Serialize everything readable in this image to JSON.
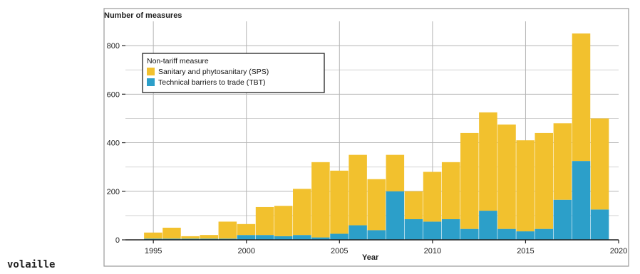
{
  "caption_word": "volaille",
  "chart_data": {
    "type": "bar",
    "stacked": true,
    "ylabel": "Number of measures",
    "xlabel": "Year",
    "ylim": [
      0,
      900
    ],
    "xlim": [
      1993.5,
      2020
    ],
    "yticks": [
      0,
      200,
      400,
      600,
      800
    ],
    "xticks": [
      1995,
      2000,
      2005,
      2010,
      2015,
      2020
    ],
    "grid": true,
    "legend": {
      "title": "Non-tariff measure",
      "placement": "top-left"
    },
    "colors": {
      "sps": "#f2c12e",
      "tbt": "#2c9fc9"
    },
    "x": [
      1995,
      1996,
      1997,
      1998,
      1999,
      2000,
      2001,
      2002,
      2003,
      2004,
      2005,
      2006,
      2007,
      2008,
      2009,
      2010,
      2011,
      2012,
      2013,
      2014,
      2015,
      2016,
      2017,
      2018,
      2019
    ],
    "series": [
      {
        "name": "Technical barriers to trade (TBT)",
        "key": "tbt",
        "values": [
          5,
          5,
          5,
          5,
          5,
          20,
          20,
          15,
          20,
          10,
          25,
          60,
          40,
          200,
          85,
          75,
          85,
          45,
          120,
          45,
          35,
          45,
          165,
          325,
          125
        ]
      },
      {
        "name": "Sanitary and phytosanitary (SPS)",
        "key": "sps",
        "values": [
          25,
          45,
          10,
          15,
          70,
          45,
          115,
          125,
          190,
          310,
          260,
          290,
          210,
          150,
          115,
          205,
          235,
          395,
          405,
          430,
          375,
          395,
          315,
          525,
          375
        ]
      }
    ]
  }
}
